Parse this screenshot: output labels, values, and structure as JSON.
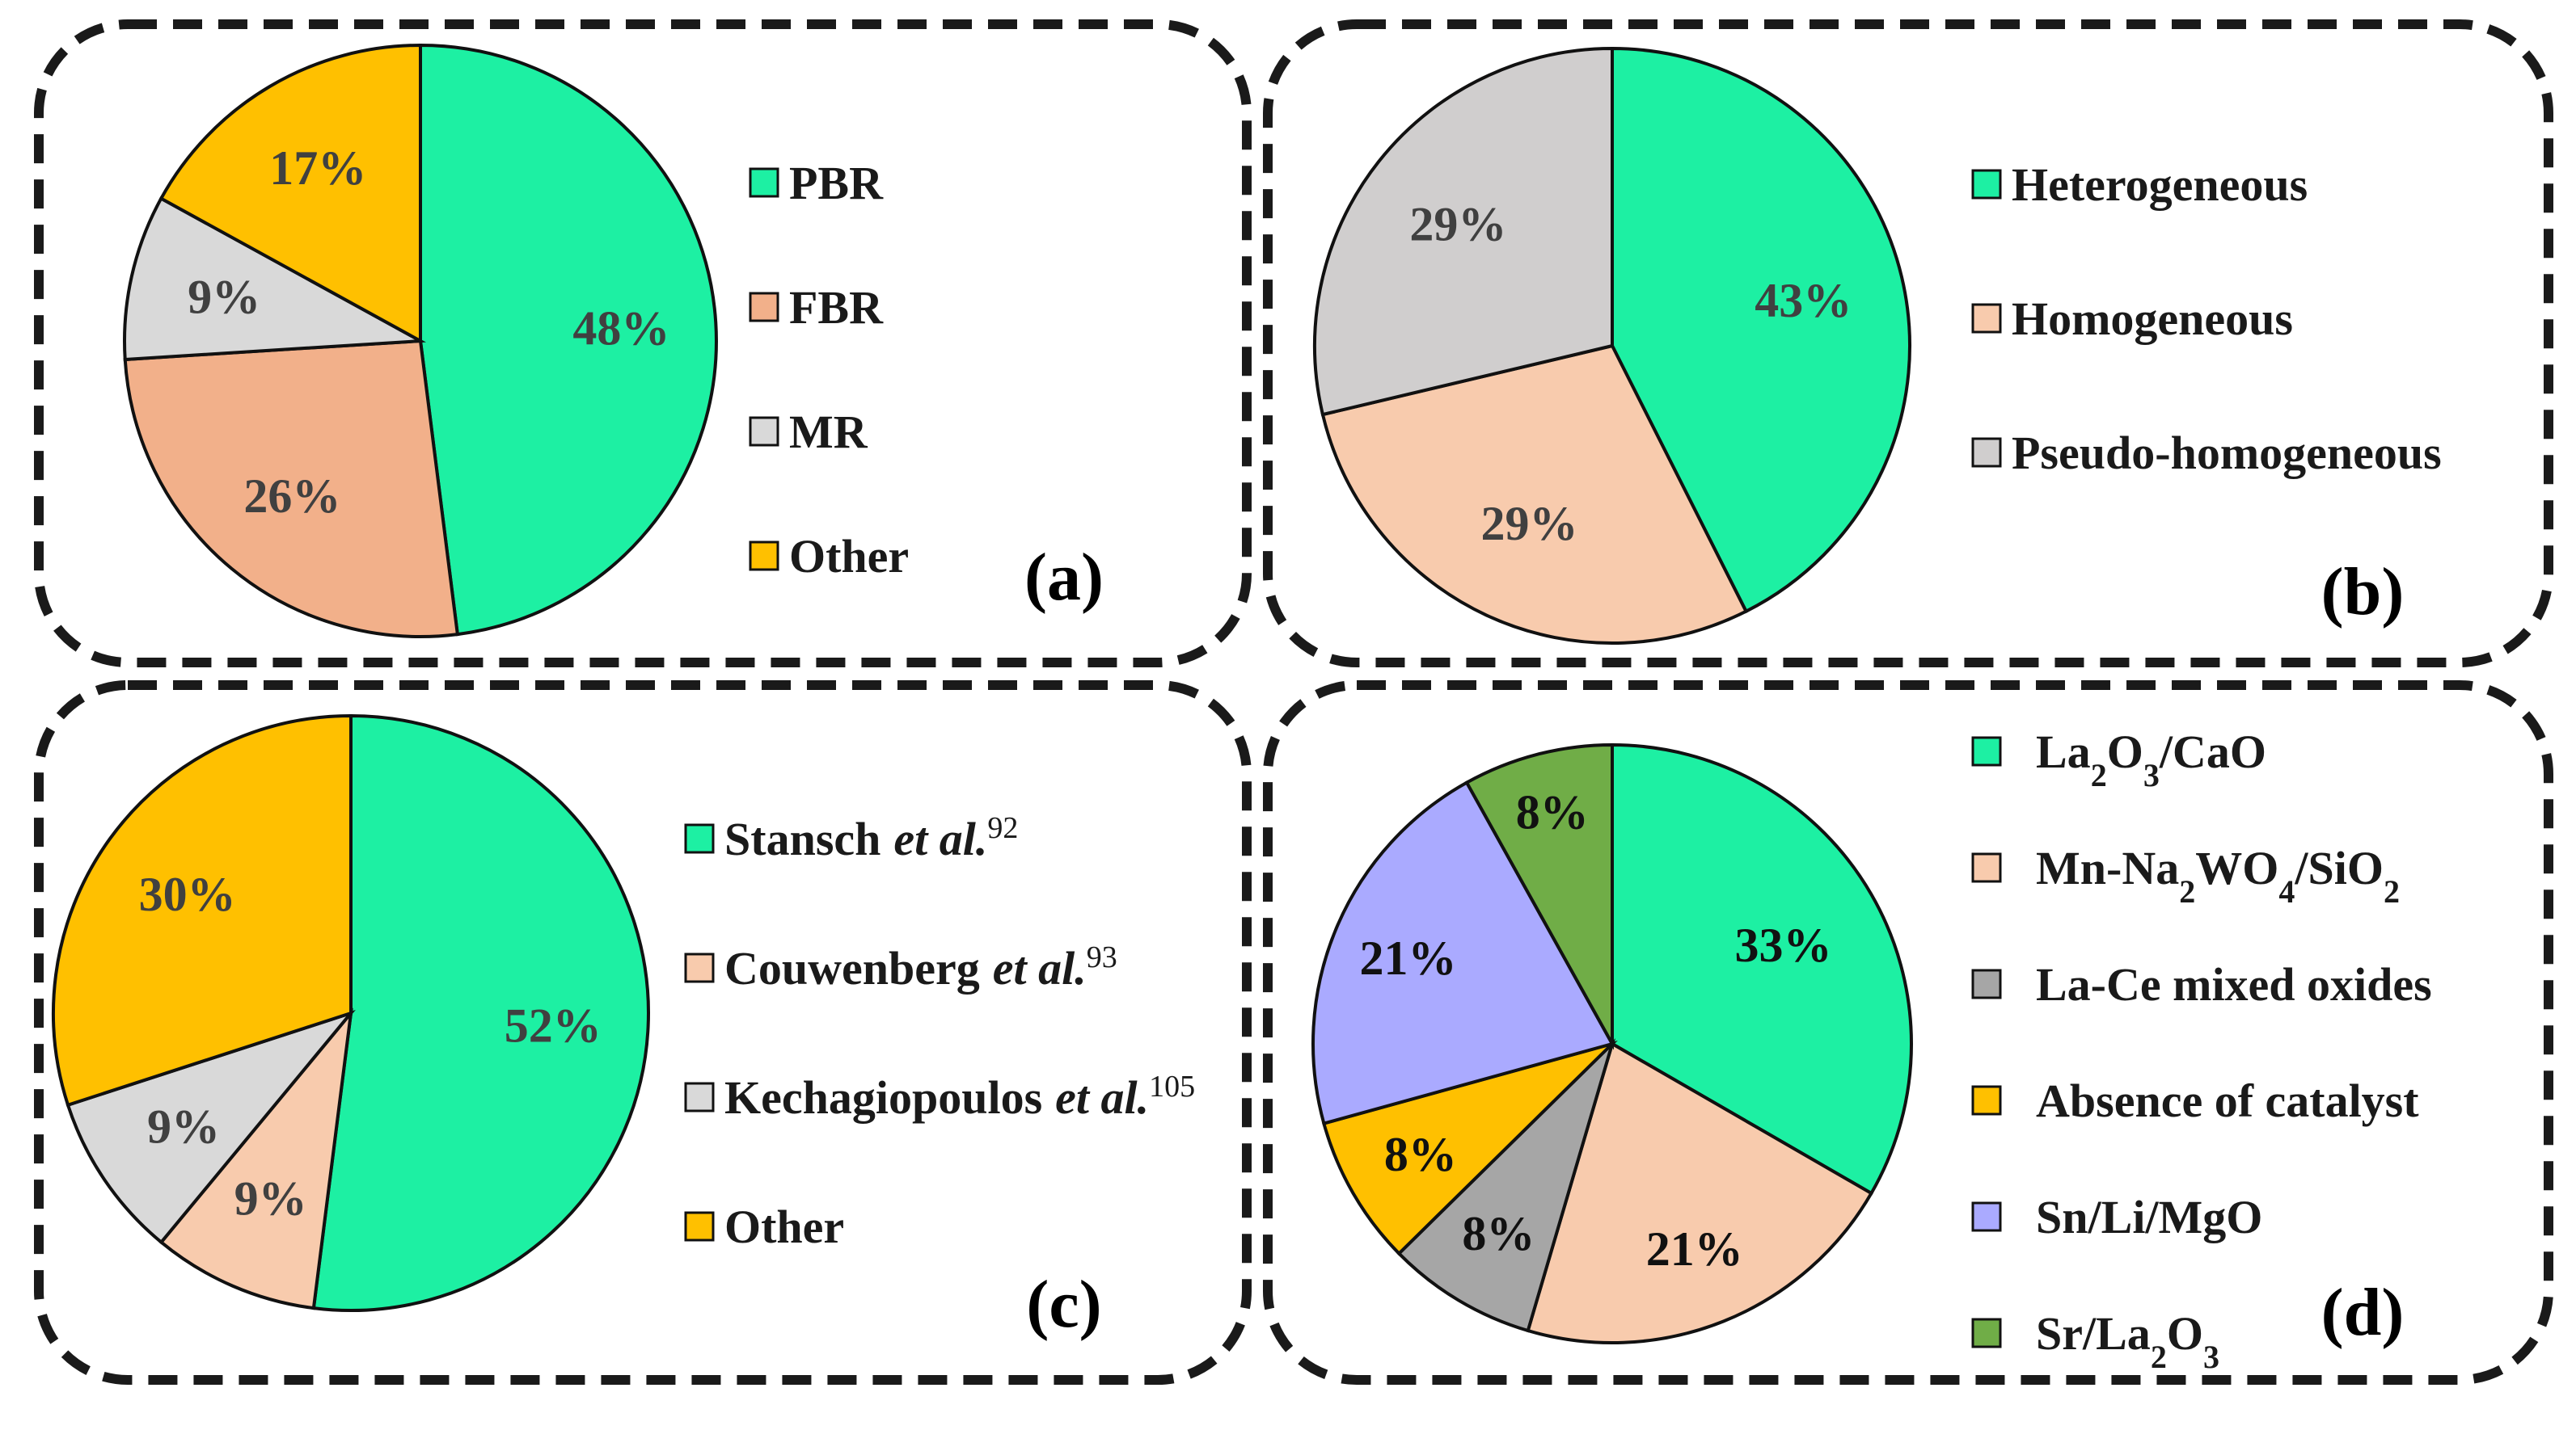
{
  "chart_data": [
    {
      "panel": "(a)",
      "type": "pie",
      "slices": [
        {
          "label": "PBR",
          "value": 48,
          "text": "48%",
          "color": "#1DF0A3"
        },
        {
          "label": "FBR",
          "value": 26,
          "text": "26%",
          "color": "#F2B08A"
        },
        {
          "label": "MR",
          "value": 9,
          "text": "9%",
          "color": "#D9D9D9"
        },
        {
          "label": "Other",
          "value": 17,
          "text": "17%",
          "color": "#FFC000"
        }
      ],
      "legend_position": "right",
      "start": "top, clockwise"
    },
    {
      "panel": "(b)",
      "type": "pie",
      "slices": [
        {
          "label": "Heterogeneous",
          "value": 43,
          "text": "43%",
          "color": "#1DF0A3"
        },
        {
          "label": "Homogeneous",
          "value": 29,
          "text": "29%",
          "color": "#F8CBAD"
        },
        {
          "label": "Pseudo-homogeneous",
          "value": 29,
          "text": "29%",
          "color": "#D0CECE"
        }
      ],
      "legend_position": "right",
      "start": "top, clockwise"
    },
    {
      "panel": "(c)",
      "type": "pie",
      "slices": [
        {
          "label": "Stansch",
          "label_italic": "et al.",
          "ref": "92",
          "value": 52,
          "text": "52%",
          "color": "#1DF0A3"
        },
        {
          "label": "Couwenberg",
          "label_italic": "et al.",
          "ref": "93",
          "value": 9,
          "text": "9%",
          "color": "#F8CBAD"
        },
        {
          "label": "Kechagiopoulos",
          "label_italic": "et al.",
          "ref": "105",
          "value": 9,
          "text": "9%",
          "color": "#D9D9D9"
        },
        {
          "label": "Other",
          "label_italic": "",
          "ref": "",
          "value": 30,
          "text": "30%",
          "color": "#FFC000"
        }
      ],
      "legend_position": "right",
      "start": "top, clockwise"
    },
    {
      "panel": "(d)",
      "type": "pie",
      "slices": [
        {
          "label_parts": [
            [
              "La",
              ""
            ],
            [
              "2",
              "sub"
            ],
            [
              "O",
              ""
            ],
            [
              "3",
              "sub"
            ],
            [
              "/CaO",
              ""
            ]
          ],
          "value": 33,
          "text": "33%",
          "color": "#1DF0A3"
        },
        {
          "label_parts": [
            [
              "Mn-Na",
              ""
            ],
            [
              "2",
              "sub"
            ],
            [
              "WO",
              ""
            ],
            [
              "4",
              "sub"
            ],
            [
              "/SiO",
              ""
            ],
            [
              "2",
              "sub"
            ]
          ],
          "value": 21,
          "text": "21%",
          "color": "#F8CBAD"
        },
        {
          "label_parts": [
            [
              "La-Ce mixed oxides",
              ""
            ]
          ],
          "value": 8,
          "text": "8%",
          "color": "#A6A6A6"
        },
        {
          "label_parts": [
            [
              "Absence of catalyst",
              ""
            ]
          ],
          "value": 8,
          "text": "8%",
          "color": "#FFC000"
        },
        {
          "label_parts": [
            [
              "Sn/Li/MgO",
              ""
            ]
          ],
          "value": 21,
          "text": "21%",
          "color": "#AAAAFF"
        },
        {
          "label_parts": [
            [
              "Sr/La",
              ""
            ],
            [
              "2",
              "sub"
            ],
            [
              "O",
              ""
            ],
            [
              "3",
              "sub"
            ]
          ],
          "value": 8,
          "text": "8%",
          "color": "#70AD47"
        }
      ],
      "legend_position": "right",
      "start": "top, clockwise"
    }
  ],
  "colors": {
    "frame": "#1a1a1a",
    "label_dark": "#404040",
    "label_black": "#111111"
  }
}
